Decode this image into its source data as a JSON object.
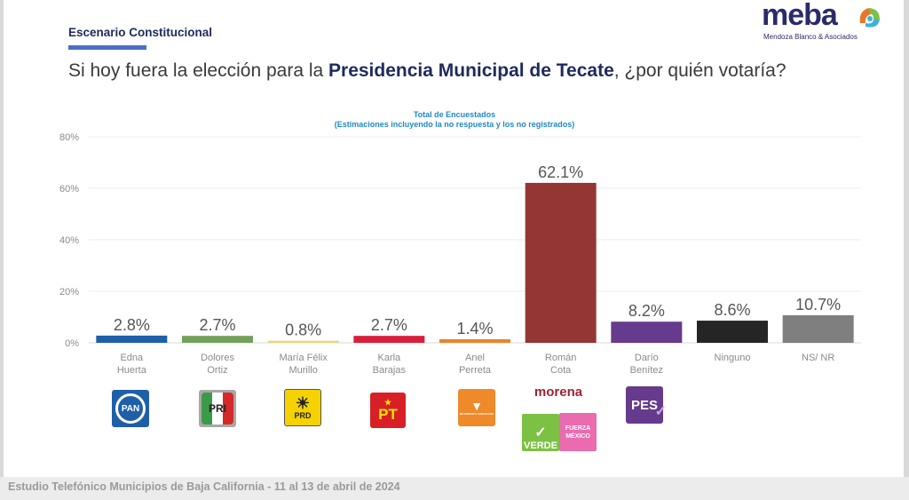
{
  "header": {
    "section_title": "Escenario Constitucional",
    "question_pre": "Si hoy fuera la elección para la ",
    "question_bold": "Presidencia Municipal de Tecate",
    "question_post": ", ¿por quién votaría?"
  },
  "brand": {
    "name": "meba",
    "subtitle": "Mendoza Blanco & Asociados"
  },
  "footer": {
    "text": "Estudio Telefónico Municipios de Baja California - 11 al 13 de abril de 2024"
  },
  "parties": {
    "pan": "PAN",
    "pri": "PRI",
    "prd": "PRD",
    "pt": "PT",
    "mc": "MOVIMIENTO CIUDADANO",
    "morena": "morena",
    "verde": "VERDE",
    "fuerza": "FUERZA MÉXICO",
    "pes": "PES"
  },
  "chart_data": {
    "type": "bar",
    "title": "Total de Encuestados",
    "subtitle": "(Estimaciones incluyendo la no respuesta y los no registrados)",
    "xlabel": "",
    "ylabel": "",
    "ylim": [
      0,
      80
    ],
    "yticks": [
      0,
      20,
      40,
      60,
      80
    ],
    "ytick_labels": [
      "0%",
      "20%",
      "40%",
      "60%",
      "80%"
    ],
    "grid": true,
    "categories": [
      [
        "Edna",
        "Huerta"
      ],
      [
        "Dolores",
        "Ortiz"
      ],
      [
        "María Félix",
        "Murillo"
      ],
      [
        "Karla",
        "Barajas"
      ],
      [
        "Anel",
        "Perreta"
      ],
      [
        "Román",
        "Cota"
      ],
      [
        "Darío",
        "Benítez"
      ],
      [
        "Ninguno"
      ],
      [
        "NS/ NR"
      ]
    ],
    "values": [
      2.8,
      2.7,
      0.8,
      2.7,
      1.4,
      62.1,
      8.2,
      8.6,
      10.7
    ],
    "data_labels": [
      "2.8%",
      "2.7%",
      "0.8%",
      "2.7%",
      "1.4%",
      "62.1%",
      "8.2%",
      "8.6%",
      "10.7%"
    ],
    "colors": [
      "#1f5fa8",
      "#72a05a",
      "#e6d77a",
      "#d81f3a",
      "#e8862a",
      "#933634",
      "#663a8c",
      "#252525",
      "#7f7f7f"
    ]
  }
}
